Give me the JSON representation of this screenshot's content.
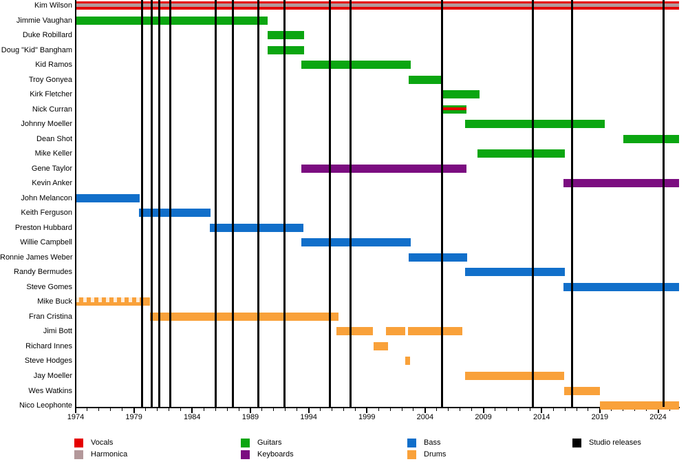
{
  "chart_data": {
    "type": "timeline",
    "title": "",
    "x_axis": {
      "start_year": 1974,
      "end_year": 2025.8,
      "tick_label_years": [
        1974,
        1979,
        1984,
        1989,
        1994,
        1999,
        2004,
        2009,
        2014,
        2019,
        2024
      ],
      "minor_tick_every_years": 1
    },
    "role_colors": {
      "vocals": "#e50000",
      "harmonica": "#b3989a",
      "guitars": "#0ba611",
      "keyboards": "#7b0d80",
      "bass": "#116fca",
      "drums": "#f9a13a",
      "studio": "#000000"
    },
    "studio_release_lines_years": [
      1979.7,
      1980.5,
      1981.2,
      1982.1,
      1986.0,
      1987.5,
      1989.7,
      1991.9,
      1995.85,
      1997.6,
      2005.45,
      2013.25,
      2016.6,
      2024.45
    ],
    "members": [
      {
        "name": "Kim Wilson",
        "bars": [
          {
            "role": "vocals",
            "start": 1974,
            "end": 2025.8,
            "overlay": "harmonica"
          }
        ]
      },
      {
        "name": "Jimmie Vaughan",
        "bars": [
          {
            "role": "guitars",
            "start": 1974,
            "end": 1990.5
          }
        ]
      },
      {
        "name": "Duke Robillard",
        "bars": [
          {
            "role": "guitars",
            "start": 1990.5,
            "end": 1993.6
          }
        ]
      },
      {
        "name": "Doug \"Kid\" Bangham",
        "bars": [
          {
            "role": "guitars",
            "start": 1990.5,
            "end": 1993.6
          }
        ]
      },
      {
        "name": "Kid Ramos",
        "bars": [
          {
            "role": "guitars",
            "start": 1993.4,
            "end": 2002.75
          }
        ]
      },
      {
        "name": "Troy Gonyea",
        "bars": [
          {
            "role": "guitars",
            "start": 2002.6,
            "end": 2005.45
          }
        ]
      },
      {
        "name": "Kirk Fletcher",
        "bars": [
          {
            "role": "guitars",
            "start": 2005.45,
            "end": 2008.65
          }
        ]
      },
      {
        "name": "Nick Curran",
        "bars": [
          {
            "role": "guitars",
            "start": 2005.45,
            "end": 2007.55,
            "overlay": "vocals"
          }
        ]
      },
      {
        "name": "Johnny Moeller",
        "bars": [
          {
            "role": "guitars",
            "start": 2007.45,
            "end": 2019.45
          }
        ]
      },
      {
        "name": "Dean Shot",
        "bars": [
          {
            "role": "guitars",
            "start": 2021.0,
            "end": 2025.8
          }
        ]
      },
      {
        "name": "Mike Keller",
        "bars": [
          {
            "role": "guitars",
            "start": 2008.5,
            "end": 2016.0
          }
        ]
      },
      {
        "name": "Gene Taylor",
        "bars": [
          {
            "role": "keyboards",
            "start": 1993.4,
            "end": 2007.55
          }
        ]
      },
      {
        "name": "Kevin Anker",
        "bars": [
          {
            "role": "keyboards",
            "start": 2015.9,
            "end": 2025.8
          }
        ]
      },
      {
        "name": "John Melancon",
        "bars": [
          {
            "role": "bass",
            "start": 1974,
            "end": 1979.5
          }
        ]
      },
      {
        "name": "Keith Ferguson",
        "bars": [
          {
            "role": "bass",
            "start": 1979.45,
            "end": 1985.6
          }
        ]
      },
      {
        "name": "Preston Hubbard",
        "bars": [
          {
            "role": "bass",
            "start": 1985.5,
            "end": 1993.55
          }
        ]
      },
      {
        "name": "Willie Campbell",
        "bars": [
          {
            "role": "bass",
            "start": 1993.4,
            "end": 2002.75
          }
        ]
      },
      {
        "name": "Ronnie James Weber",
        "bars": [
          {
            "role": "bass",
            "start": 2002.6,
            "end": 2007.6
          }
        ]
      },
      {
        "name": "Randy Bermudes",
        "bars": [
          {
            "role": "bass",
            "start": 2007.45,
            "end": 2016.0
          }
        ]
      },
      {
        "name": "Steve Gomes",
        "bars": [
          {
            "role": "bass",
            "start": 2015.9,
            "end": 2025.8
          }
        ]
      },
      {
        "name": "Mike Buck",
        "bars": [
          {
            "role": "drums",
            "start": 1974,
            "end": 1980.4,
            "hatch_until": 1979.6
          }
        ]
      },
      {
        "name": "Fran Cristina",
        "bars": [
          {
            "role": "drums",
            "start": 1980.4,
            "end": 1996.55
          }
        ]
      },
      {
        "name": "Jimi Bott",
        "bars": [
          {
            "role": "drums",
            "start": 1996.4,
            "end": 1999.5
          },
          {
            "role": "drums",
            "start": 2000.65,
            "end": 2002.3
          },
          {
            "role": "drums",
            "start": 2002.55,
            "end": 2007.2
          }
        ]
      },
      {
        "name": "Richard Innes",
        "bars": [
          {
            "role": "drums",
            "start": 1999.55,
            "end": 2000.8
          }
        ]
      },
      {
        "name": "Steve Hodges",
        "bars": [
          {
            "role": "drums",
            "start": 2002.3,
            "end": 2002.7
          }
        ]
      },
      {
        "name": "Jay Moeller",
        "bars": [
          {
            "role": "drums",
            "start": 2007.45,
            "end": 2015.95
          }
        ]
      },
      {
        "name": "Wes Watkins",
        "bars": [
          {
            "role": "drums",
            "start": 2015.95,
            "end": 2019.0
          }
        ]
      },
      {
        "name": "Nico Leophonte",
        "bars": [
          {
            "role": "drums",
            "start": 2019.0,
            "end": 2025.8
          }
        ]
      }
    ],
    "legend": {
      "columns": [
        [
          {
            "label": "Vocals",
            "role": "vocals"
          },
          {
            "label": "Harmonica",
            "role": "harmonica"
          }
        ],
        [
          {
            "label": "Guitars",
            "role": "guitars"
          },
          {
            "label": "Keyboards",
            "role": "keyboards"
          }
        ],
        [
          {
            "label": "Bass",
            "role": "bass"
          },
          {
            "label": "Drums",
            "role": "drums"
          }
        ],
        [
          {
            "label": "Studio releases",
            "role": "studio"
          }
        ]
      ]
    }
  }
}
